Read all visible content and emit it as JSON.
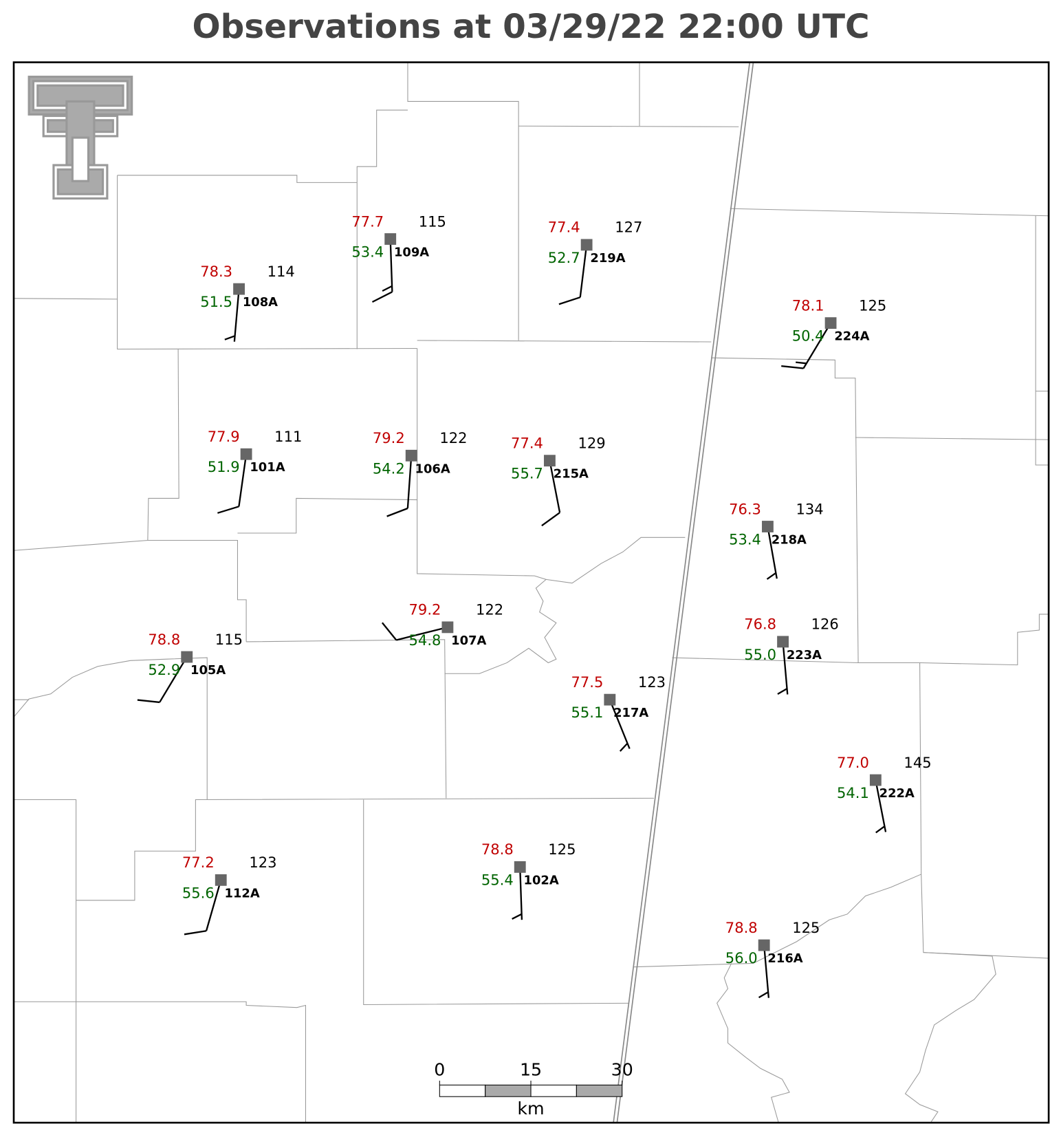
{
  "title": "Observations at 03/29/22 22:00 UTC",
  "stations": [
    {
      "id": "108A",
      "temperature": "78.3",
      "dewpoint": "51.5",
      "pressure": "114",
      "wind_direction": 185,
      "wind_speed": 5
    },
    {
      "id": "109A",
      "temperature": "77.7",
      "dewpoint": "53.4",
      "pressure": "115",
      "wind_direction": 178,
      "wind_speed": 15
    },
    {
      "id": "219A",
      "temperature": "77.4",
      "dewpoint": "52.7",
      "pressure": "127",
      "wind_direction": 187,
      "wind_speed": 10
    },
    {
      "id": "224A",
      "temperature": "78.1",
      "dewpoint": "50.4",
      "pressure": "125",
      "wind_direction": 211,
      "wind_speed": 15
    },
    {
      "id": "101A",
      "temperature": "77.9",
      "dewpoint": "51.9",
      "pressure": "111",
      "wind_direction": 188,
      "wind_speed": 10
    },
    {
      "id": "106A",
      "temperature": "79.2",
      "dewpoint": "54.2",
      "pressure": "122",
      "wind_direction": 184,
      "wind_speed": 10
    },
    {
      "id": "215A",
      "temperature": "77.4",
      "dewpoint": "55.7",
      "pressure": "129",
      "wind_direction": 169,
      "wind_speed": 10
    },
    {
      "id": "218A",
      "temperature": "76.3",
      "dewpoint": "53.4",
      "pressure": "134",
      "wind_direction": 170,
      "wind_speed": 5
    },
    {
      "id": "107A",
      "temperature": "79.2",
      "dewpoint": "54.8",
      "pressure": "122",
      "wind_direction": 256,
      "wind_speed": 10
    },
    {
      "id": "223A",
      "temperature": "76.8",
      "dewpoint": "55.0",
      "pressure": "126",
      "wind_direction": 175,
      "wind_speed": 5
    },
    {
      "id": "105A",
      "temperature": "78.8",
      "dewpoint": "52.9",
      "pressure": "115",
      "wind_direction": 211,
      "wind_speed": 10
    },
    {
      "id": "217A",
      "temperature": "77.5",
      "dewpoint": "55.1",
      "pressure": "123",
      "wind_direction": 158,
      "wind_speed": 5
    },
    {
      "id": "222A",
      "temperature": "77.0",
      "dewpoint": "54.1",
      "pressure": "145",
      "wind_direction": 169,
      "wind_speed": 5
    },
    {
      "id": "112A",
      "temperature": "77.2",
      "dewpoint": "55.6",
      "pressure": "123",
      "wind_direction": 196,
      "wind_speed": 10
    },
    {
      "id": "102A",
      "temperature": "78.8",
      "dewpoint": "55.4",
      "pressure": "125",
      "wind_direction": 178,
      "wind_speed": 5
    },
    {
      "id": "216A",
      "temperature": "78.8",
      "dewpoint": "56.0",
      "pressure": "125",
      "wind_direction": 175,
      "wind_speed": 5
    }
  ],
  "scale_bar": {
    "ticks": [
      0,
      15,
      30
    ],
    "unit": "km"
  }
}
